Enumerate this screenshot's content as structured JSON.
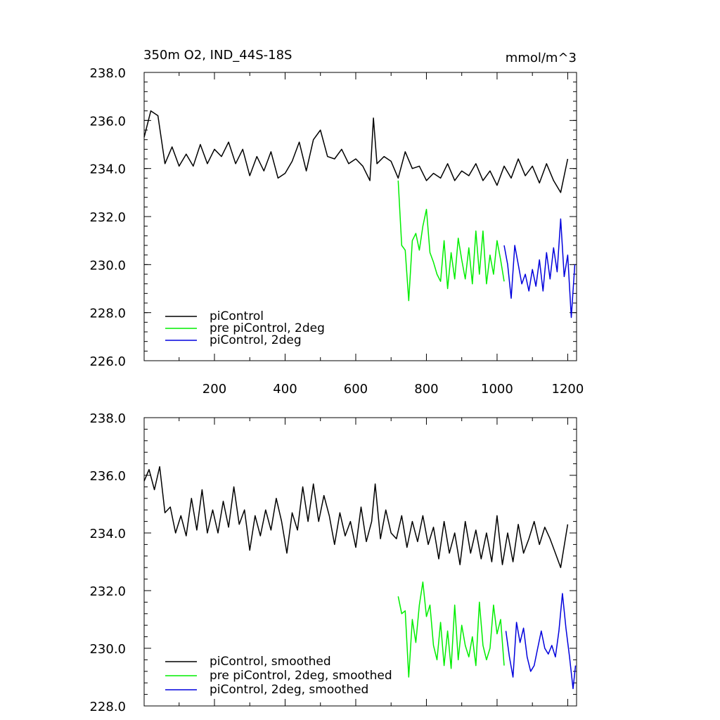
{
  "figure": {
    "title_left": "350m O2, IND_44S-18S",
    "title_right": "mmol/m^3"
  },
  "colors": {
    "picontrol": "#000000",
    "pre_2deg": "#00ee00",
    "2deg": "#0000dd"
  },
  "chart_data": [
    {
      "type": "line",
      "name": "raw",
      "xlim": [
        1,
        1225
      ],
      "ylim": [
        226,
        238
      ],
      "xticks": [
        200,
        400,
        600,
        800,
        1000,
        1200
      ],
      "xtick_labels": [
        "200",
        "400",
        "600",
        "800",
        "1000",
        "1200"
      ],
      "yticks": [
        226,
        228,
        230,
        232,
        234,
        236,
        238
      ],
      "ytick_labels": [
        "226.0",
        "228.0",
        "230.0",
        "232.0",
        "234.0",
        "236.0",
        "238.0"
      ],
      "legend": [
        "piControl",
        "pre piControl, 2deg",
        "piControl, 2deg"
      ],
      "series": [
        {
          "name": "piControl",
          "color_key": "picontrol",
          "x": [
            1,
            20,
            40,
            60,
            80,
            100,
            120,
            140,
            160,
            180,
            200,
            220,
            240,
            260,
            280,
            300,
            320,
            340,
            360,
            380,
            400,
            420,
            440,
            460,
            480,
            500,
            520,
            540,
            560,
            580,
            600,
            620,
            640,
            650,
            660,
            680,
            700,
            720,
            740,
            760,
            780,
            800,
            820,
            840,
            860,
            880,
            900,
            920,
            940,
            960,
            980,
            1000,
            1020,
            1040,
            1060,
            1080,
            1100,
            1120,
            1140,
            1160,
            1180,
            1200
          ],
          "y": [
            235.3,
            236.4,
            236.2,
            234.2,
            234.9,
            234.1,
            234.6,
            234.1,
            235.0,
            234.2,
            234.8,
            234.5,
            235.1,
            234.2,
            234.8,
            233.7,
            234.5,
            233.9,
            234.7,
            233.6,
            233.8,
            234.3,
            235.1,
            233.9,
            235.2,
            235.6,
            234.5,
            234.4,
            234.8,
            234.2,
            234.4,
            234.1,
            233.5,
            236.1,
            234.2,
            234.5,
            234.3,
            233.6,
            234.7,
            234.0,
            234.1,
            233.5,
            233.8,
            233.6,
            234.2,
            233.5,
            233.9,
            233.7,
            234.2,
            233.5,
            233.9,
            233.3,
            234.1,
            233.6,
            234.4,
            233.7,
            234.1,
            233.4,
            234.2,
            233.5,
            233.0,
            234.4
          ]
        },
        {
          "name": "pre piControl, 2deg",
          "color_key": "pre_2deg",
          "x": [
            720,
            730,
            740,
            750,
            760,
            770,
            780,
            790,
            800,
            810,
            820,
            830,
            840,
            850,
            860,
            870,
            880,
            890,
            900,
            910,
            920,
            930,
            940,
            950,
            960,
            970,
            980,
            990,
            1000,
            1010,
            1020
          ],
          "y": [
            233.5,
            230.8,
            230.6,
            228.5,
            231.0,
            231.3,
            230.6,
            231.6,
            232.3,
            230.5,
            230.1,
            229.6,
            229.3,
            231.0,
            229.0,
            230.5,
            229.4,
            231.1,
            230.2,
            229.4,
            230.7,
            229.2,
            231.4,
            229.6,
            231.4,
            229.2,
            230.4,
            229.6,
            231.0,
            230.2,
            229.3
          ]
        },
        {
          "name": "piControl, 2deg",
          "color_key": "2deg",
          "x": [
            1020,
            1030,
            1040,
            1050,
            1060,
            1070,
            1080,
            1090,
            1100,
            1110,
            1120,
            1130,
            1140,
            1150,
            1160,
            1170,
            1180,
            1190,
            1200,
            1210,
            1220
          ],
          "y": [
            230.8,
            230.0,
            228.6,
            230.8,
            230.0,
            229.2,
            229.6,
            228.9,
            229.8,
            229.1,
            230.2,
            228.9,
            230.5,
            229.4,
            230.7,
            229.7,
            231.9,
            229.5,
            230.4,
            227.8,
            230.0
          ]
        }
      ]
    },
    {
      "type": "line",
      "name": "smoothed",
      "xlim": [
        1,
        1225
      ],
      "ylim": [
        228,
        238
      ],
      "xticks": [
        200,
        400,
        600,
        800,
        1000,
        1200
      ],
      "yticks": [
        228,
        230,
        232,
        234,
        236,
        238
      ],
      "ytick_labels": [
        "228.0",
        "230.0",
        "232.0",
        "234.0",
        "236.0",
        "238.0"
      ],
      "legend": [
        "piControl, smoothed",
        "pre piControl, 2deg, smoothed",
        "piControl, 2deg, smoothed"
      ],
      "series": [
        {
          "name": "piControl, smoothed",
          "color_key": "picontrol",
          "x": [
            1,
            15,
            30,
            45,
            60,
            75,
            90,
            105,
            120,
            135,
            150,
            165,
            180,
            195,
            210,
            225,
            240,
            255,
            270,
            285,
            300,
            315,
            330,
            345,
            360,
            375,
            390,
            405,
            420,
            435,
            450,
            465,
            480,
            495,
            510,
            525,
            540,
            555,
            570,
            585,
            600,
            615,
            630,
            645,
            655,
            670,
            685,
            700,
            715,
            730,
            745,
            760,
            775,
            790,
            805,
            820,
            835,
            850,
            865,
            880,
            895,
            910,
            925,
            940,
            955,
            970,
            985,
            1000,
            1015,
            1030,
            1045,
            1060,
            1075,
            1090,
            1105,
            1120,
            1135,
            1150,
            1165,
            1180,
            1200
          ],
          "y": [
            235.8,
            236.2,
            235.5,
            236.3,
            234.7,
            234.9,
            234.0,
            234.6,
            233.9,
            235.2,
            234.1,
            235.5,
            234.0,
            234.8,
            234.0,
            235.1,
            234.2,
            235.6,
            234.3,
            234.8,
            233.4,
            234.6,
            233.9,
            234.8,
            234.1,
            235.2,
            234.4,
            233.3,
            234.7,
            234.1,
            235.6,
            234.4,
            235.7,
            234.4,
            235.3,
            234.6,
            233.6,
            234.7,
            233.9,
            234.4,
            233.5,
            234.9,
            233.7,
            234.4,
            235.7,
            233.8,
            234.8,
            234.0,
            233.8,
            234.6,
            233.5,
            234.4,
            233.7,
            234.6,
            233.6,
            234.2,
            233.1,
            234.4,
            233.3,
            234.0,
            232.9,
            234.4,
            233.3,
            234.1,
            233.1,
            234.0,
            233.0,
            234.6,
            232.9,
            234.0,
            233.0,
            234.3,
            233.3,
            233.8,
            234.4,
            233.6,
            234.2,
            233.8,
            233.3,
            232.8,
            234.3
          ]
        },
        {
          "name": "pre piControl, 2deg, smoothed",
          "color_key": "pre_2deg",
          "x": [
            720,
            730,
            740,
            750,
            760,
            770,
            780,
            790,
            800,
            810,
            820,
            830,
            840,
            850,
            860,
            870,
            880,
            890,
            900,
            910,
            920,
            930,
            940,
            950,
            960,
            970,
            980,
            990,
            1000,
            1010,
            1020
          ],
          "y": [
            231.8,
            231.2,
            231.3,
            229.0,
            231.0,
            230.2,
            231.5,
            232.3,
            231.1,
            231.5,
            230.1,
            229.6,
            230.9,
            229.4,
            230.6,
            229.3,
            231.5,
            229.6,
            230.8,
            230.1,
            229.7,
            230.4,
            229.4,
            231.6,
            230.1,
            229.6,
            230.0,
            231.5,
            230.5,
            231.0,
            229.4
          ]
        },
        {
          "name": "piControl, 2deg, smoothed",
          "color_key": "2deg",
          "x": [
            1025,
            1035,
            1045,
            1055,
            1065,
            1075,
            1085,
            1095,
            1105,
            1115,
            1125,
            1135,
            1145,
            1155,
            1165,
            1175,
            1185,
            1195,
            1205,
            1215,
            1222
          ],
          "y": [
            230.6,
            229.7,
            229.0,
            230.9,
            230.2,
            230.7,
            229.7,
            229.2,
            229.4,
            230.0,
            230.6,
            230.0,
            229.8,
            230.1,
            229.7,
            230.6,
            231.9,
            230.7,
            229.7,
            228.6,
            229.4
          ]
        }
      ]
    }
  ]
}
